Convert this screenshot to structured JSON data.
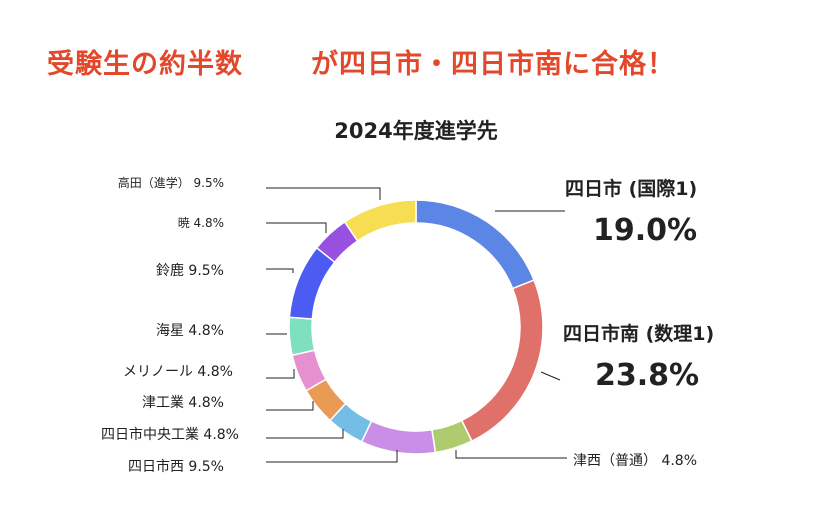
{
  "headline": {
    "part1": "受験生の約半数",
    "part2": "が四日市・四日市南に合格！",
    "color": "#e3482b"
  },
  "chart_data": {
    "type": "pie",
    "title": "2024年度進学先",
    "slices": [
      {
        "label": "四日市 (国際1)",
        "value": 19.0,
        "value_label": "19.0%",
        "color": "#5b86e5",
        "emphasis": true
      },
      {
        "label": "四日市南 (数理1)",
        "value": 23.8,
        "value_label": "23.8%",
        "color": "#e0706a",
        "emphasis": true
      },
      {
        "label": "津西（普通）",
        "value": 4.8,
        "value_label": "4.8%",
        "color": "#aecb6e",
        "emphasis": false
      },
      {
        "label": "四日市西",
        "value": 9.5,
        "value_label": "9.5%",
        "color": "#c98fe8",
        "emphasis": false
      },
      {
        "label": "四日市中央工業",
        "value": 4.8,
        "value_label": "4.8%",
        "color": "#73bde6",
        "emphasis": false
      },
      {
        "label": "津工業",
        "value": 4.8,
        "value_label": "4.8%",
        "color": "#e99a55",
        "emphasis": false
      },
      {
        "label": "メリノール",
        "value": 4.8,
        "value_label": "4.8%",
        "color": "#e790cf",
        "emphasis": false
      },
      {
        "label": "海星",
        "value": 4.8,
        "value_label": "4.8%",
        "color": "#7ee0bf",
        "emphasis": false
      },
      {
        "label": "鈴鹿",
        "value": 9.5,
        "value_label": "9.5%",
        "color": "#4c5cf2",
        "emphasis": false
      },
      {
        "label": "暁",
        "value": 4.8,
        "value_label": "4.8%",
        "color": "#9750e0",
        "emphasis": false
      },
      {
        "label": "高田（進学）",
        "value": 9.5,
        "value_label": "9.5%",
        "color": "#f7dd52",
        "emphasis": false
      }
    ]
  }
}
